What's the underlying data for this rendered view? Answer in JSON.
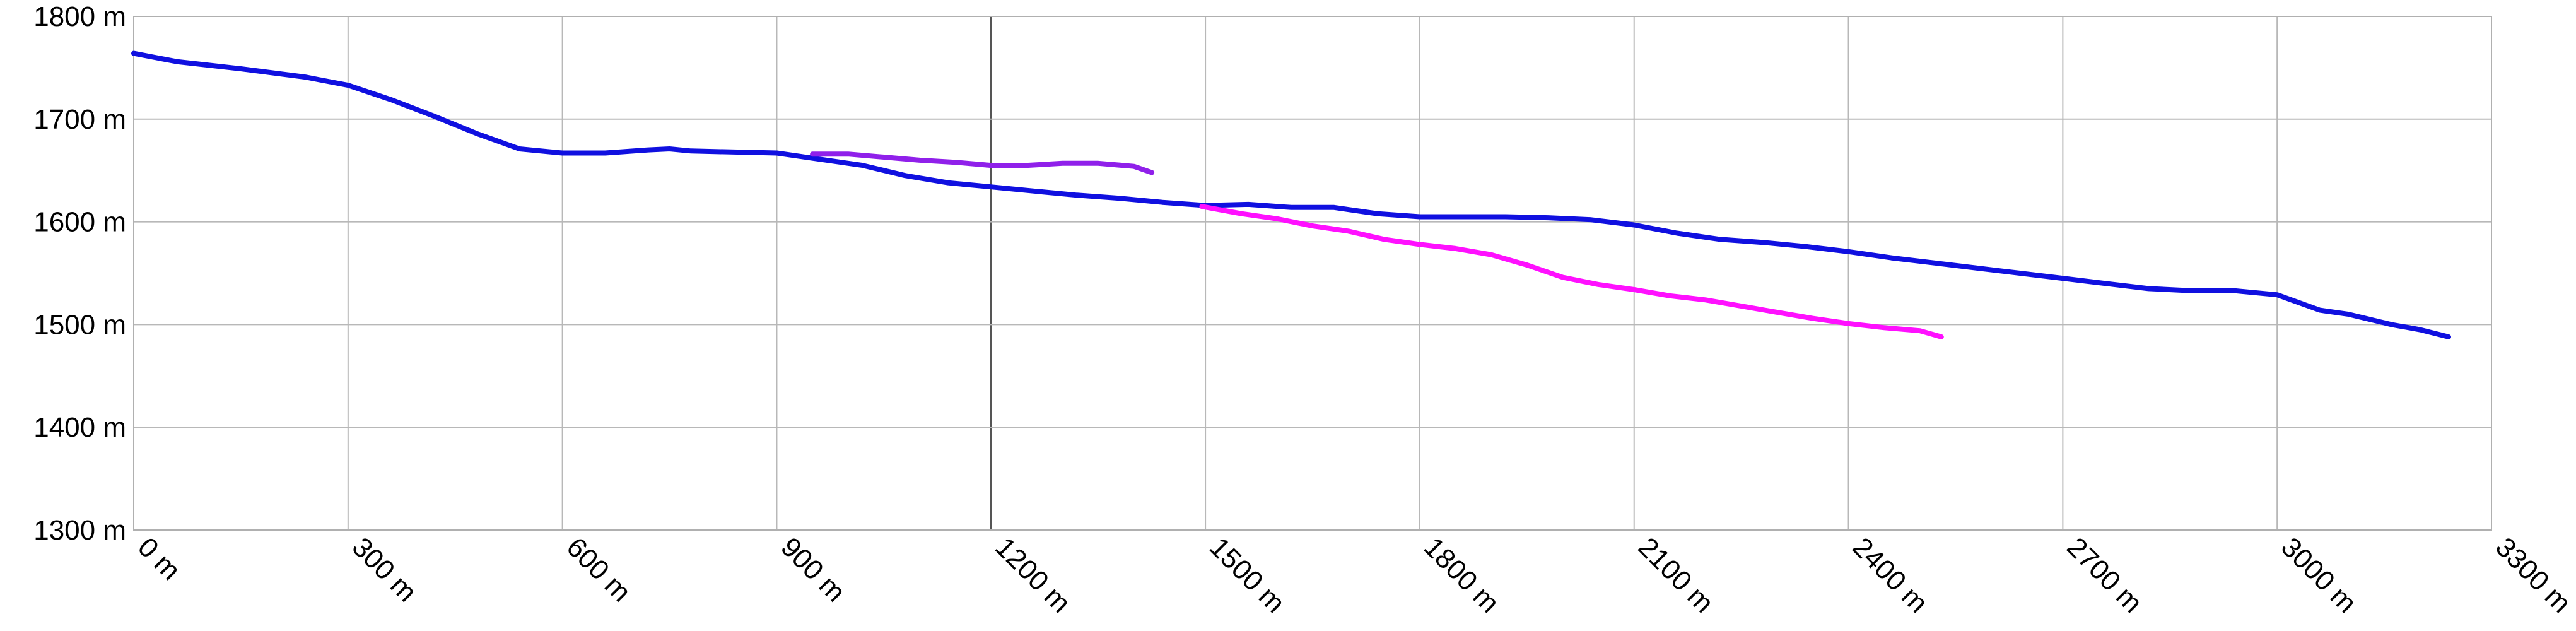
{
  "chart_data": {
    "type": "line",
    "title": "",
    "xlabel": "",
    "ylabel": "",
    "xlim": [
      0,
      3300
    ],
    "ylim": [
      1300,
      1800
    ],
    "grid": true,
    "x_ticks": [
      0,
      300,
      600,
      900,
      1200,
      1500,
      1800,
      2100,
      2400,
      2700,
      3000,
      3300
    ],
    "x_tick_labels": [
      "0 m",
      "300 m",
      "600 m",
      "900 m",
      "1200 m",
      "1500 m",
      "1800 m",
      "2100 m",
      "2400 m",
      "2700 m",
      "3000 m",
      "3300 m"
    ],
    "y_ticks": [
      1300,
      1400,
      1500,
      1600,
      1700,
      1800
    ],
    "y_tick_labels": [
      "1300 m",
      "1400 m",
      "1500 m",
      "1600 m",
      "1700 m",
      "1800 m"
    ],
    "series": [
      {
        "color": "#1010e0",
        "x": [
          0,
          60,
          150,
          240,
          300,
          360,
          420,
          480,
          540,
          600,
          660,
          720,
          750,
          780,
          840,
          900,
          960,
          1020,
          1080,
          1140,
          1200,
          1260,
          1320,
          1380,
          1440,
          1500,
          1560,
          1620,
          1680,
          1740,
          1800,
          1860,
          1920,
          1980,
          2040,
          2100,
          2160,
          2220,
          2280,
          2340,
          2400,
          2460,
          2520,
          2580,
          2640,
          2700,
          2760,
          2820,
          2880,
          2940,
          3000,
          3060,
          3100,
          3160,
          3200,
          3240
        ],
        "y": [
          1764,
          1756,
          1749,
          1741,
          1733,
          1719,
          1703,
          1686,
          1671,
          1667,
          1667,
          1670,
          1671,
          1669,
          1668,
          1667,
          1661,
          1655,
          1645,
          1638,
          1634,
          1630,
          1626,
          1623,
          1619,
          1616,
          1617,
          1614,
          1614,
          1608,
          1605,
          1605,
          1605,
          1604,
          1602,
          1597,
          1589,
          1583,
          1580,
          1576,
          1571,
          1565,
          1560,
          1555,
          1550,
          1545,
          1540,
          1535,
          1533,
          1533,
          1529,
          1514,
          1510,
          1500,
          1495,
          1488
        ]
      },
      {
        "color": "#9020ea",
        "x": [
          950,
          1000,
          1050,
          1100,
          1150,
          1200,
          1250,
          1300,
          1350,
          1400,
          1425
        ],
        "y": [
          1666,
          1666,
          1663,
          1660,
          1658,
          1655,
          1655,
          1657,
          1657,
          1654,
          1648
        ]
      },
      {
        "color": "#ff10ff",
        "x": [
          1495,
          1550,
          1600,
          1650,
          1700,
          1750,
          1800,
          1850,
          1900,
          1950,
          2000,
          2050,
          2100,
          2150,
          2200,
          2250,
          2300,
          2350,
          2400,
          2450,
          2500,
          2530
        ],
        "y": [
          1615,
          1608,
          1603,
          1596,
          1591,
          1583,
          1578,
          1574,
          1568,
          1558,
          1546,
          1539,
          1534,
          1528,
          1524,
          1518,
          1512,
          1506,
          1501,
          1497,
          1494,
          1488
        ]
      }
    ]
  }
}
